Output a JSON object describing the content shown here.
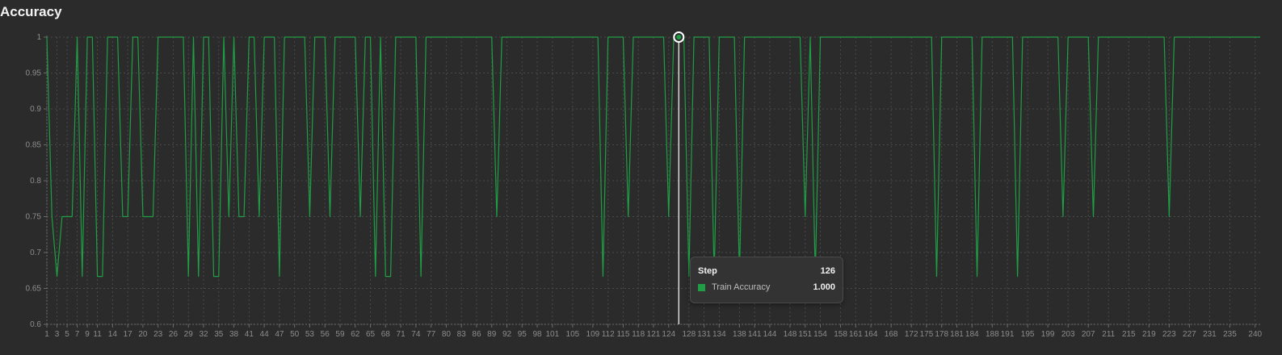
{
  "chart_data": {
    "type": "line",
    "title": "Accuracy",
    "xlabel": "",
    "ylabel": "",
    "xlim": [
      1,
      241
    ],
    "ylim": [
      0.6,
      1.0
    ],
    "grid": true,
    "legend": "none",
    "yticks": [
      "1",
      "0.95",
      "0.9",
      "0.85",
      "0.8",
      "0.75",
      "0.7",
      "0.65",
      "0.6"
    ],
    "xticks": [
      1,
      3,
      5,
      7,
      9,
      11,
      14,
      17,
      20,
      23,
      26,
      29,
      32,
      35,
      38,
      41,
      44,
      47,
      50,
      53,
      56,
      59,
      62,
      65,
      68,
      71,
      74,
      77,
      80,
      83,
      86,
      89,
      92,
      95,
      98,
      101,
      105,
      109,
      112,
      115,
      118,
      121,
      124,
      128,
      131,
      134,
      138,
      141,
      144,
      148,
      151,
      154,
      158,
      161,
      164,
      168,
      172,
      175,
      178,
      181,
      184,
      188,
      191,
      195,
      199,
      203,
      207,
      211,
      215,
      219,
      223,
      227,
      231,
      235,
      240
    ],
    "series": [
      {
        "name": "Train Accuracy",
        "color": "#1f9e45",
        "points": [
          [
            1,
            1
          ],
          [
            2,
            0.75
          ],
          [
            3,
            0.6667
          ],
          [
            4,
            0.75
          ],
          [
            5,
            0.75
          ],
          [
            6,
            0.75
          ],
          [
            7,
            1
          ],
          [
            8,
            0.6667
          ],
          [
            9,
            1
          ],
          [
            10,
            1
          ],
          [
            11,
            0.6667
          ],
          [
            12,
            0.6667
          ],
          [
            13,
            1
          ],
          [
            14,
            1
          ],
          [
            15,
            1
          ],
          [
            16,
            0.75
          ],
          [
            17,
            0.75
          ],
          [
            18,
            1
          ],
          [
            19,
            1
          ],
          [
            20,
            0.75
          ],
          [
            21,
            0.75
          ],
          [
            22,
            0.75
          ],
          [
            23,
            1
          ],
          [
            24,
            1
          ],
          [
            25,
            1
          ],
          [
            26,
            1
          ],
          [
            27,
            1
          ],
          [
            28,
            1
          ],
          [
            29,
            0.6667
          ],
          [
            30,
            1
          ],
          [
            31,
            0.6667
          ],
          [
            32,
            1
          ],
          [
            33,
            1
          ],
          [
            34,
            0.6667
          ],
          [
            35,
            0.6667
          ],
          [
            36,
            1
          ],
          [
            37,
            0.75
          ],
          [
            38,
            1
          ],
          [
            39,
            0.75
          ],
          [
            40,
            0.75
          ],
          [
            41,
            1
          ],
          [
            42,
            1
          ],
          [
            43,
            0.75
          ],
          [
            44,
            1
          ],
          [
            45,
            1
          ],
          [
            46,
            1
          ],
          [
            47,
            0.6667
          ],
          [
            48,
            1
          ],
          [
            49,
            1
          ],
          [
            50,
            1
          ],
          [
            51,
            1
          ],
          [
            52,
            1
          ],
          [
            53,
            0.75
          ],
          [
            54,
            1
          ],
          [
            55,
            1
          ],
          [
            56,
            1
          ],
          [
            57,
            0.75
          ],
          [
            58,
            1
          ],
          [
            59,
            1
          ],
          [
            60,
            1
          ],
          [
            61,
            1
          ],
          [
            62,
            1
          ],
          [
            63,
            0.75
          ],
          [
            64,
            1
          ],
          [
            65,
            1
          ],
          [
            66,
            0.6667
          ],
          [
            67,
            1
          ],
          [
            68,
            0.6667
          ],
          [
            69,
            0.6667
          ],
          [
            70,
            1
          ],
          [
            71,
            1
          ],
          [
            72,
            1
          ],
          [
            73,
            1
          ],
          [
            74,
            1
          ],
          [
            75,
            0.6667
          ],
          [
            76,
            1
          ],
          [
            77,
            1
          ],
          [
            78,
            1
          ],
          [
            79,
            1
          ],
          [
            80,
            1
          ],
          [
            81,
            1
          ],
          [
            82,
            1
          ],
          [
            83,
            1
          ],
          [
            84,
            1
          ],
          [
            85,
            1
          ],
          [
            86,
            1
          ],
          [
            87,
            1
          ],
          [
            88,
            1
          ],
          [
            89,
            1
          ],
          [
            90,
            0.75
          ],
          [
            91,
            1
          ],
          [
            92,
            1
          ],
          [
            93,
            1
          ],
          [
            94,
            1
          ],
          [
            95,
            1
          ],
          [
            96,
            1
          ],
          [
            97,
            1
          ],
          [
            98,
            1
          ],
          [
            99,
            1
          ],
          [
            100,
            1
          ],
          [
            101,
            1
          ],
          [
            102,
            1
          ],
          [
            103,
            1
          ],
          [
            104,
            1
          ],
          [
            105,
            1
          ],
          [
            106,
            1
          ],
          [
            107,
            1
          ],
          [
            108,
            1
          ],
          [
            109,
            1
          ],
          [
            110,
            1
          ],
          [
            111,
            0.6667
          ],
          [
            112,
            1
          ],
          [
            113,
            1
          ],
          [
            114,
            1
          ],
          [
            115,
            1
          ],
          [
            116,
            0.75
          ],
          [
            117,
            1
          ],
          [
            118,
            1
          ],
          [
            119,
            1
          ],
          [
            120,
            1
          ],
          [
            121,
            1
          ],
          [
            122,
            1
          ],
          [
            123,
            1
          ],
          [
            124,
            0.75
          ],
          [
            125,
            1
          ],
          [
            126,
            1
          ],
          [
            127,
            1
          ],
          [
            128,
            0.6667
          ],
          [
            129,
            1
          ],
          [
            130,
            1
          ],
          [
            131,
            1
          ],
          [
            132,
            1
          ],
          [
            133,
            0.6667
          ],
          [
            134,
            1
          ],
          [
            135,
            1
          ],
          [
            136,
            1
          ],
          [
            137,
            1
          ],
          [
            138,
            0.6667
          ],
          [
            139,
            1
          ],
          [
            140,
            1
          ],
          [
            141,
            1
          ],
          [
            142,
            1
          ],
          [
            143,
            1
          ],
          [
            144,
            1
          ],
          [
            145,
            1
          ],
          [
            146,
            1
          ],
          [
            147,
            1
          ],
          [
            148,
            1
          ],
          [
            149,
            1
          ],
          [
            150,
            1
          ],
          [
            151,
            0.75
          ],
          [
            152,
            1
          ],
          [
            153,
            0.6667
          ],
          [
            154,
            1
          ],
          [
            155,
            1
          ],
          [
            156,
            1
          ],
          [
            157,
            1
          ],
          [
            158,
            1
          ],
          [
            159,
            1
          ],
          [
            160,
            1
          ],
          [
            161,
            1
          ],
          [
            162,
            1
          ],
          [
            163,
            1
          ],
          [
            164,
            1
          ],
          [
            165,
            1
          ],
          [
            166,
            1
          ],
          [
            167,
            1
          ],
          [
            168,
            1
          ],
          [
            169,
            1
          ],
          [
            170,
            1
          ],
          [
            171,
            1
          ],
          [
            172,
            1
          ],
          [
            173,
            1
          ],
          [
            174,
            1
          ],
          [
            175,
            1
          ],
          [
            176,
            1
          ],
          [
            177,
            0.6667
          ],
          [
            178,
            1
          ],
          [
            179,
            1
          ],
          [
            180,
            1
          ],
          [
            181,
            1
          ],
          [
            182,
            1
          ],
          [
            183,
            1
          ],
          [
            184,
            1
          ],
          [
            185,
            0.6667
          ],
          [
            186,
            1
          ],
          [
            187,
            1
          ],
          [
            188,
            1
          ],
          [
            189,
            1
          ],
          [
            190,
            1
          ],
          [
            191,
            1
          ],
          [
            192,
            1
          ],
          [
            193,
            0.6667
          ],
          [
            194,
            1
          ],
          [
            195,
            1
          ],
          [
            196,
            1
          ],
          [
            197,
            1
          ],
          [
            198,
            1
          ],
          [
            199,
            1
          ],
          [
            200,
            1
          ],
          [
            201,
            1
          ],
          [
            202,
            0.75
          ],
          [
            203,
            1
          ],
          [
            204,
            1
          ],
          [
            205,
            1
          ],
          [
            206,
            1
          ],
          [
            207,
            1
          ],
          [
            208,
            0.75
          ],
          [
            209,
            1
          ],
          [
            210,
            1
          ],
          [
            211,
            1
          ],
          [
            212,
            1
          ],
          [
            213,
            1
          ],
          [
            214,
            1
          ],
          [
            215,
            1
          ],
          [
            216,
            1
          ],
          [
            217,
            1
          ],
          [
            218,
            1
          ],
          [
            219,
            1
          ],
          [
            220,
            1
          ],
          [
            221,
            1
          ],
          [
            222,
            1
          ],
          [
            223,
            0.75
          ],
          [
            224,
            1
          ],
          [
            225,
            1
          ],
          [
            226,
            1
          ],
          [
            227,
            1
          ],
          [
            228,
            1
          ],
          [
            229,
            1
          ],
          [
            230,
            1
          ],
          [
            231,
            1
          ],
          [
            232,
            1
          ],
          [
            233,
            1
          ],
          [
            234,
            1
          ],
          [
            235,
            1
          ],
          [
            236,
            1
          ],
          [
            237,
            1
          ],
          [
            238,
            1
          ],
          [
            239,
            1
          ],
          [
            240,
            1
          ],
          [
            241,
            1
          ]
        ]
      }
    ]
  },
  "tooltip": {
    "step_label": "Step",
    "step_value": "126",
    "series_label": "Train Accuracy",
    "series_value": "1.000",
    "series_color": "#1f9e45",
    "hover_step": 126
  },
  "colors": {
    "background": "#2b2b2b",
    "grid": "#4a4a4a",
    "axis": "#6a6a6a",
    "crosshair": "#d9d9d9"
  }
}
